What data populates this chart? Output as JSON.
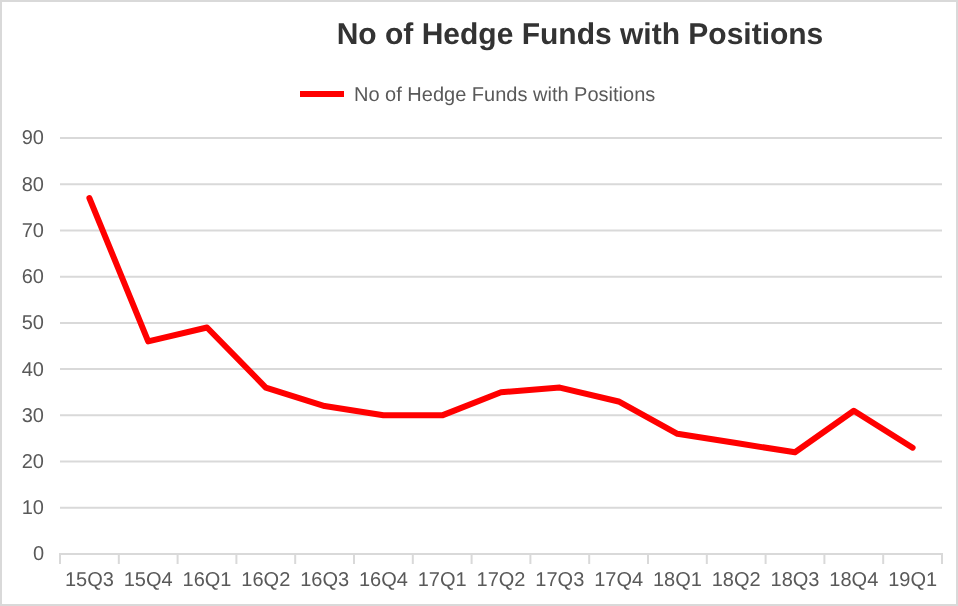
{
  "chart_data": {
    "type": "line",
    "title": "No of Hedge Funds with Positions",
    "categories": [
      "15Q3",
      "15Q4",
      "16Q1",
      "16Q2",
      "16Q3",
      "16Q4",
      "17Q1",
      "17Q2",
      "17Q3",
      "17Q4",
      "18Q1",
      "18Q2",
      "18Q3",
      "18Q4",
      "19Q1"
    ],
    "series": [
      {
        "name": "No of Hedge Funds with Positions",
        "color": "#ff0000",
        "values": [
          77,
          46,
          49,
          36,
          32,
          30,
          30,
          35,
          36,
          33,
          26,
          24,
          22,
          31,
          23
        ]
      }
    ],
    "ylim": [
      0,
      90
    ],
    "yticks": [
      0,
      10,
      20,
      30,
      40,
      50,
      60,
      70,
      80,
      90
    ],
    "grid": "y",
    "legend": "top",
    "marker": "none",
    "line_style": "solid"
  }
}
